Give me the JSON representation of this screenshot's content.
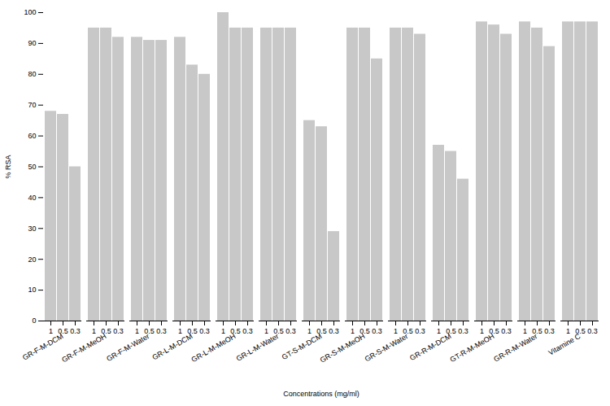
{
  "chart_data": {
    "type": "bar",
    "categories": [
      "GR-F-M-DCM",
      "GR-F-M-MeOH",
      "GR-F-M-Water",
      "GR-L-M-DCM",
      "GR-L-M-MeOH",
      "GR-L-M-Water",
      "GT-S-M-DCM",
      "GR-S-M-MeOH",
      "GR-S-M-Water",
      "GR-R-M-DCM",
      "GT-R-M-MeOH",
      "GR-R-M-Water",
      "Vitamine C"
    ],
    "series": [
      {
        "name": "1",
        "color": "#c8c8c8",
        "values": [
          68,
          95,
          92,
          92,
          100,
          95,
          65,
          95,
          95,
          57,
          97,
          97,
          97
        ]
      },
      {
        "name": "0.5",
        "color": "#c8c8c8",
        "values": [
          67,
          95,
          91,
          83,
          95,
          95,
          63,
          95,
          95,
          55,
          96,
          95,
          97
        ]
      },
      {
        "name": "0.3",
        "color": "#c8c8c8",
        "values": [
          50,
          92,
          91,
          80,
          95,
          95,
          29,
          85,
          93,
          46,
          93,
          89,
          97
        ]
      }
    ],
    "xlabel": "Concentrations (mg/ml)",
    "ylabel": "% RSA",
    "ylim": [
      0,
      100
    ],
    "yticks": [
      0,
      10,
      20,
      30,
      40,
      50,
      60,
      70,
      80,
      90,
      100
    ]
  }
}
